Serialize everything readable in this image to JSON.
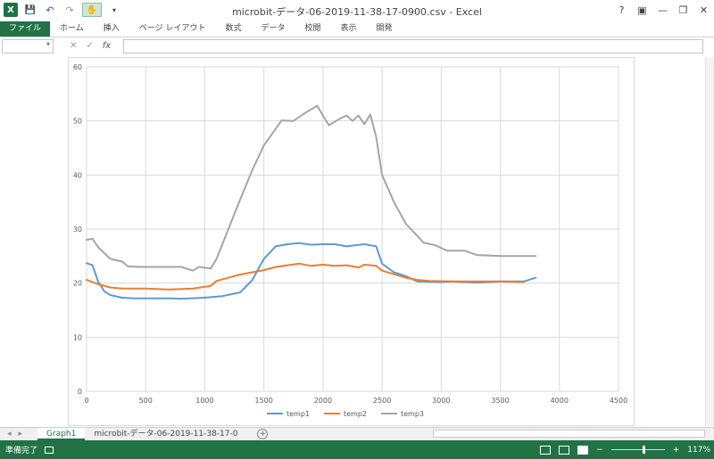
{
  "window": {
    "title": "microbit-データ-06-2019-11-38-17-0900.csv - Excel",
    "controls": [
      "?",
      "▣",
      "—",
      "❐",
      "✕"
    ]
  },
  "qat": {
    "logo": "X",
    "save": "💾",
    "undo": "↶",
    "redo": "↷",
    "touch": "✋",
    "more": "▾"
  },
  "ribbon": {
    "tabs": [
      "ファイル",
      "ホーム",
      "挿入",
      "ページ レイアウト",
      "数式",
      "データ",
      "校閲",
      "表示",
      "開発"
    ]
  },
  "formula_bar": {
    "name_box": "▾",
    "cancel": "✕",
    "enter": "✓",
    "fx": "fx",
    "value": ""
  },
  "chart_data": {
    "type": "line",
    "title": "",
    "xlabel": "",
    "ylabel": "",
    "xlim": [
      0,
      4500
    ],
    "ylim": [
      0,
      60
    ],
    "x_ticks": [
      "0",
      "500",
      "1000",
      "1500",
      "2000",
      "2500",
      "3000",
      "3500",
      "4000",
      "4500"
    ],
    "y_ticks": [
      "0",
      "10",
      "20",
      "30",
      "40",
      "50",
      "60"
    ],
    "grid": true,
    "legend": "bottom",
    "series": [
      {
        "name": "temp1",
        "color": "#5b9bd5",
        "points": [
          [
            0,
            23.7
          ],
          [
            50,
            23.3
          ],
          [
            100,
            20.2
          ],
          [
            150,
            18.5
          ],
          [
            200,
            17.8
          ],
          [
            300,
            17.3
          ],
          [
            400,
            17.2
          ],
          [
            600,
            17.2
          ],
          [
            700,
            17.2
          ],
          [
            800,
            17.1
          ],
          [
            1000,
            17.3
          ],
          [
            1150,
            17.6
          ],
          [
            1300,
            18.3
          ],
          [
            1400,
            20.5
          ],
          [
            1500,
            24.5
          ],
          [
            1600,
            26.8
          ],
          [
            1700,
            27.2
          ],
          [
            1800,
            27.4
          ],
          [
            1900,
            27.1
          ],
          [
            2000,
            27.2
          ],
          [
            2100,
            27.2
          ],
          [
            2200,
            26.8
          ],
          [
            2350,
            27.2
          ],
          [
            2450,
            26.8
          ],
          [
            2500,
            23.6
          ],
          [
            2600,
            22.0
          ],
          [
            2700,
            21.3
          ],
          [
            2800,
            20.3
          ],
          [
            3000,
            20.2
          ],
          [
            3100,
            20.3
          ],
          [
            3300,
            20.1
          ],
          [
            3500,
            20.3
          ],
          [
            3700,
            20.3
          ],
          [
            3800,
            21.0
          ]
        ]
      },
      {
        "name": "temp2",
        "color": "#ed7d31",
        "points": [
          [
            0,
            20.6
          ],
          [
            100,
            19.8
          ],
          [
            200,
            19.2
          ],
          [
            300,
            19.0
          ],
          [
            500,
            19.0
          ],
          [
            700,
            18.8
          ],
          [
            900,
            19.0
          ],
          [
            1050,
            19.5
          ],
          [
            1100,
            20.4
          ],
          [
            1300,
            21.6
          ],
          [
            1500,
            22.4
          ],
          [
            1600,
            23.0
          ],
          [
            1700,
            23.3
          ],
          [
            1800,
            23.6
          ],
          [
            1900,
            23.2
          ],
          [
            2000,
            23.4
          ],
          [
            2100,
            23.2
          ],
          [
            2200,
            23.3
          ],
          [
            2300,
            22.9
          ],
          [
            2350,
            23.4
          ],
          [
            2450,
            23.2
          ],
          [
            2500,
            22.3
          ],
          [
            2700,
            21.0
          ],
          [
            2800,
            20.6
          ],
          [
            2900,
            20.4
          ],
          [
            3100,
            20.3
          ],
          [
            3300,
            20.3
          ],
          [
            3500,
            20.3
          ],
          [
            3700,
            20.2
          ]
        ]
      },
      {
        "name": "temp3",
        "color": "#a5a5a5",
        "points": [
          [
            0,
            28.0
          ],
          [
            50,
            28.2
          ],
          [
            100,
            26.6
          ],
          [
            200,
            24.5
          ],
          [
            300,
            24.0
          ],
          [
            350,
            23.1
          ],
          [
            450,
            23.0
          ],
          [
            800,
            23.0
          ],
          [
            900,
            22.3
          ],
          [
            950,
            23.0
          ],
          [
            1050,
            22.7
          ],
          [
            1100,
            24.5
          ],
          [
            1200,
            30.0
          ],
          [
            1300,
            35.5
          ],
          [
            1400,
            40.8
          ],
          [
            1500,
            45.5
          ],
          [
            1550,
            47.0
          ],
          [
            1650,
            50.1
          ],
          [
            1750,
            50.0
          ],
          [
            1850,
            51.5
          ],
          [
            1950,
            52.8
          ],
          [
            2000,
            51.0
          ],
          [
            2050,
            49.2
          ],
          [
            2150,
            50.5
          ],
          [
            2200,
            51.0
          ],
          [
            2250,
            50.0
          ],
          [
            2300,
            51.0
          ],
          [
            2350,
            49.4
          ],
          [
            2400,
            51.2
          ],
          [
            2450,
            47.0
          ],
          [
            2500,
            40.0
          ],
          [
            2600,
            35.0
          ],
          [
            2700,
            31.0
          ],
          [
            2800,
            28.7
          ],
          [
            2850,
            27.5
          ],
          [
            2950,
            27.0
          ],
          [
            3050,
            26.0
          ],
          [
            3200,
            26.0
          ],
          [
            3300,
            25.2
          ],
          [
            3500,
            25.0
          ],
          [
            3800,
            25.0
          ]
        ]
      }
    ]
  },
  "sheet_tabs": {
    "prev": "◂",
    "next": "▸",
    "items": [
      "Graph1",
      "microbit-データ-06-2019-11-38-17-0"
    ],
    "active": 0,
    "add": "+"
  },
  "status": {
    "ready": "準備完了",
    "zoom_minus": "−",
    "zoom_plus": "+",
    "zoom": "117%"
  }
}
